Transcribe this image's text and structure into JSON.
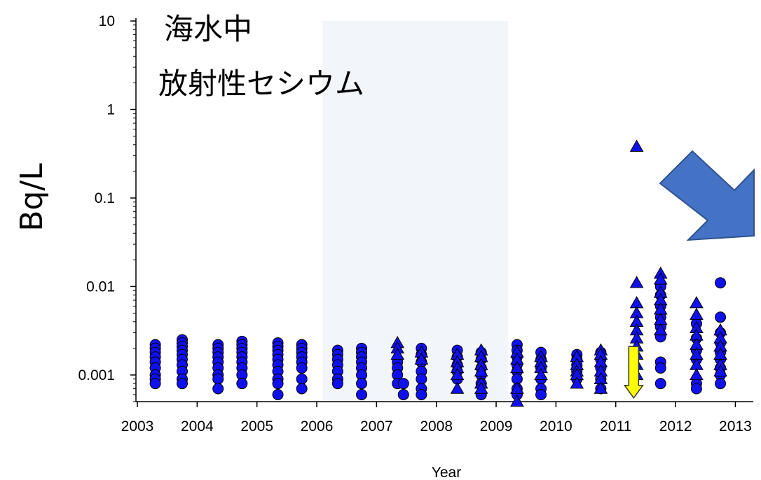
{
  "chart_data": {
    "type": "scatter",
    "title": [
      "海水中",
      "放射性セシウム"
    ],
    "xlabel": "Year",
    "ylabel": "Bq/L",
    "xlim": [
      2003,
      2013.3
    ],
    "ylim": [
      0.0005,
      10
    ],
    "yscale": "log",
    "x_ticks": [
      2003,
      2004,
      2005,
      2006,
      2007,
      2008,
      2009,
      2010,
      2011,
      2012,
      2013
    ],
    "x_tick_labels": [
      "2003",
      "2004",
      "2005",
      "2006",
      "2007",
      "2008",
      "2009",
      "2010",
      "2011",
      "2012",
      "2013"
    ],
    "y_ticks": [
      0.001,
      0.01,
      0.1,
      1,
      10
    ],
    "y_tick_labels": [
      "0.001",
      "0.01",
      "0.1",
      "1",
      "10"
    ],
    "shaded_region": {
      "x": [
        2006.1,
        2009.2
      ],
      "color": "#f2f5fa"
    },
    "marker_color": "#1010ee",
    "series": [
      {
        "marker": "circle",
        "points": [
          [
            2003.3,
            0.0022
          ],
          [
            2003.3,
            0.002
          ],
          [
            2003.3,
            0.0018
          ],
          [
            2003.3,
            0.0016
          ],
          [
            2003.3,
            0.0014
          ],
          [
            2003.3,
            0.0012
          ],
          [
            2003.3,
            0.001
          ],
          [
            2003.3,
            0.0009
          ],
          [
            2003.3,
            0.0008
          ],
          [
            2003.75,
            0.0025
          ],
          [
            2003.75,
            0.0023
          ],
          [
            2003.75,
            0.0021
          ],
          [
            2003.75,
            0.0019
          ],
          [
            2003.75,
            0.0017
          ],
          [
            2003.75,
            0.0015
          ],
          [
            2003.75,
            0.0013
          ],
          [
            2003.75,
            0.0011
          ],
          [
            2003.75,
            0.0009
          ],
          [
            2003.75,
            0.0008
          ],
          [
            2004.35,
            0.0022
          ],
          [
            2004.35,
            0.002
          ],
          [
            2004.35,
            0.0018
          ],
          [
            2004.35,
            0.0016
          ],
          [
            2004.35,
            0.0014
          ],
          [
            2004.35,
            0.0012
          ],
          [
            2004.35,
            0.001
          ],
          [
            2004.35,
            0.0009
          ],
          [
            2004.35,
            0.0007
          ],
          [
            2004.75,
            0.0024
          ],
          [
            2004.75,
            0.0022
          ],
          [
            2004.75,
            0.002
          ],
          [
            2004.75,
            0.0018
          ],
          [
            2004.75,
            0.0016
          ],
          [
            2004.75,
            0.0014
          ],
          [
            2004.75,
            0.0012
          ],
          [
            2004.75,
            0.001
          ],
          [
            2004.75,
            0.0008
          ],
          [
            2005.35,
            0.0023
          ],
          [
            2005.35,
            0.0021
          ],
          [
            2005.35,
            0.0019
          ],
          [
            2005.35,
            0.0017
          ],
          [
            2005.35,
            0.0015
          ],
          [
            2005.35,
            0.0013
          ],
          [
            2005.35,
            0.0011
          ],
          [
            2005.35,
            0.0009
          ],
          [
            2005.35,
            0.0008
          ],
          [
            2005.35,
            0.0006
          ],
          [
            2005.75,
            0.0022
          ],
          [
            2005.75,
            0.002
          ],
          [
            2005.75,
            0.0018
          ],
          [
            2005.75,
            0.0016
          ],
          [
            2005.75,
            0.0014
          ],
          [
            2005.75,
            0.0012
          ],
          [
            2005.75,
            0.0009
          ],
          [
            2005.75,
            0.0007
          ],
          [
            2006.35,
            0.0019
          ],
          [
            2006.35,
            0.0017
          ],
          [
            2006.35,
            0.0015
          ],
          [
            2006.35,
            0.0013
          ],
          [
            2006.35,
            0.0011
          ],
          [
            2006.35,
            0.0009
          ],
          [
            2006.35,
            0.0008
          ],
          [
            2006.75,
            0.002
          ],
          [
            2006.75,
            0.0018
          ],
          [
            2006.75,
            0.0016
          ],
          [
            2006.75,
            0.0014
          ],
          [
            2006.75,
            0.0012
          ],
          [
            2006.75,
            0.001
          ],
          [
            2006.75,
            0.0008
          ],
          [
            2006.75,
            0.0006
          ],
          [
            2007.35,
            0.0014
          ],
          [
            2007.35,
            0.0012
          ],
          [
            2007.35,
            0.001
          ],
          [
            2007.35,
            0.0008
          ],
          [
            2007.45,
            0.0008
          ],
          [
            2007.45,
            0.0006
          ],
          [
            2007.75,
            0.002
          ],
          [
            2007.75,
            0.0017
          ],
          [
            2007.75,
            0.0014
          ],
          [
            2007.75,
            0.0011
          ],
          [
            2007.75,
            0.0009
          ],
          [
            2007.75,
            0.0007
          ],
          [
            2007.75,
            0.0006
          ],
          [
            2008.35,
            0.0019
          ],
          [
            2008.35,
            0.0016
          ],
          [
            2008.35,
            0.0013
          ],
          [
            2008.35,
            0.0011
          ],
          [
            2008.35,
            0.0009
          ],
          [
            2008.75,
            0.0018
          ],
          [
            2008.75,
            0.0015
          ],
          [
            2008.75,
            0.0012
          ],
          [
            2008.75,
            0.001
          ],
          [
            2008.75,
            0.0008
          ],
          [
            2008.75,
            0.0006
          ],
          [
            2009.35,
            0.0022
          ],
          [
            2009.35,
            0.0019
          ],
          [
            2009.35,
            0.0016
          ],
          [
            2009.35,
            0.0013
          ],
          [
            2009.35,
            0.0011
          ],
          [
            2009.35,
            0.0009
          ],
          [
            2009.35,
            0.0007
          ],
          [
            2009.35,
            0.0006
          ],
          [
            2009.75,
            0.0018
          ],
          [
            2009.75,
            0.0015
          ],
          [
            2009.75,
            0.0012
          ],
          [
            2009.75,
            0.0009
          ],
          [
            2009.75,
            0.0007
          ],
          [
            2009.75,
            0.0006
          ],
          [
            2010.35,
            0.0017
          ],
          [
            2010.35,
            0.0015
          ],
          [
            2010.35,
            0.0013
          ],
          [
            2010.35,
            0.0011
          ],
          [
            2010.35,
            0.0009
          ],
          [
            2010.75,
            0.0018
          ],
          [
            2010.75,
            0.0015
          ],
          [
            2010.75,
            0.0012
          ],
          [
            2010.75,
            0.0009
          ],
          [
            2010.75,
            0.0007
          ],
          [
            2011.75,
            0.01
          ],
          [
            2011.75,
            0.008
          ],
          [
            2011.75,
            0.006
          ],
          [
            2011.75,
            0.0045
          ],
          [
            2011.75,
            0.0035
          ],
          [
            2011.75,
            0.0027
          ],
          [
            2011.75,
            0.0014
          ],
          [
            2011.75,
            0.0012
          ],
          [
            2011.75,
            0.0008
          ],
          [
            2012.35,
            0.0038
          ],
          [
            2012.35,
            0.0026
          ],
          [
            2012.35,
            0.0019
          ],
          [
            2012.35,
            0.0015
          ],
          [
            2012.35,
            0.0008
          ],
          [
            2012.35,
            0.0007
          ],
          [
            2012.75,
            0.011
          ],
          [
            2012.75,
            0.0045
          ],
          [
            2012.75,
            0.003
          ],
          [
            2012.75,
            0.0023
          ],
          [
            2012.75,
            0.0018
          ],
          [
            2012.75,
            0.0015
          ],
          [
            2012.75,
            0.0012
          ],
          [
            2012.75,
            0.001
          ],
          [
            2012.75,
            0.0008
          ]
        ]
      },
      {
        "marker": "triangle",
        "points": [
          [
            2007.35,
            0.0023
          ],
          [
            2007.35,
            0.002
          ],
          [
            2007.35,
            0.0017
          ],
          [
            2007.75,
            0.0018
          ],
          [
            2007.75,
            0.0015
          ],
          [
            2008.35,
            0.0017
          ],
          [
            2008.35,
            0.0014
          ],
          [
            2008.35,
            0.0012
          ],
          [
            2008.35,
            0.001
          ],
          [
            2008.35,
            0.0007
          ],
          [
            2008.75,
            0.0019
          ],
          [
            2008.75,
            0.0016
          ],
          [
            2008.75,
            0.0013
          ],
          [
            2008.75,
            0.0011
          ],
          [
            2008.75,
            0.0008
          ],
          [
            2008.75,
            0.0007
          ],
          [
            2009.35,
            0.0018
          ],
          [
            2009.35,
            0.0015
          ],
          [
            2009.35,
            0.0012
          ],
          [
            2009.35,
            0.0007
          ],
          [
            2009.35,
            0.0005
          ],
          [
            2009.75,
            0.0016
          ],
          [
            2009.75,
            0.0014
          ],
          [
            2009.75,
            0.0012
          ],
          [
            2009.75,
            0.001
          ],
          [
            2010.35,
            0.0016
          ],
          [
            2010.35,
            0.0013
          ],
          [
            2010.35,
            0.0011
          ],
          [
            2010.35,
            0.001
          ],
          [
            2010.35,
            0.0008
          ],
          [
            2010.75,
            0.0019
          ],
          [
            2010.75,
            0.0017
          ],
          [
            2010.75,
            0.0014
          ],
          [
            2010.75,
            0.0011
          ],
          [
            2010.75,
            0.0009
          ],
          [
            2010.75,
            0.0007
          ],
          [
            2011.35,
            0.38
          ],
          [
            2011.35,
            0.011
          ],
          [
            2011.35,
            0.0065
          ],
          [
            2011.35,
            0.005
          ],
          [
            2011.35,
            0.004
          ],
          [
            2011.35,
            0.0032
          ],
          [
            2011.35,
            0.0026
          ],
          [
            2011.35,
            0.0021
          ],
          [
            2011.35,
            0.0017
          ],
          [
            2011.35,
            0.0013
          ],
          [
            2011.35,
            0.001
          ],
          [
            2011.75,
            0.014
          ],
          [
            2011.75,
            0.012
          ],
          [
            2011.75,
            0.0085
          ],
          [
            2011.75,
            0.007
          ],
          [
            2011.75,
            0.0055
          ],
          [
            2011.75,
            0.0042
          ],
          [
            2011.75,
            0.0032
          ],
          [
            2012.35,
            0.0065
          ],
          [
            2012.35,
            0.0048
          ],
          [
            2012.35,
            0.0034
          ],
          [
            2012.35,
            0.0028
          ],
          [
            2012.35,
            0.0022
          ],
          [
            2012.35,
            0.0017
          ],
          [
            2012.35,
            0.0013
          ],
          [
            2012.35,
            0.001
          ],
          [
            2012.75,
            0.0032
          ],
          [
            2012.75,
            0.0026
          ],
          [
            2012.75,
            0.0021
          ],
          [
            2012.75,
            0.0017
          ],
          [
            2012.75,
            0.0013
          ],
          [
            2012.75,
            0.0011
          ]
        ]
      }
    ],
    "annotations": [
      {
        "type": "arrow",
        "description": "yellow down arrow",
        "x": 2011.3,
        "y_from": 0.0021,
        "y_to": 0.00055,
        "color": "#ffff00"
      },
      {
        "type": "arrow",
        "description": "large blue diagonal arrow pointing down-right",
        "color": "#4472c4"
      }
    ]
  }
}
